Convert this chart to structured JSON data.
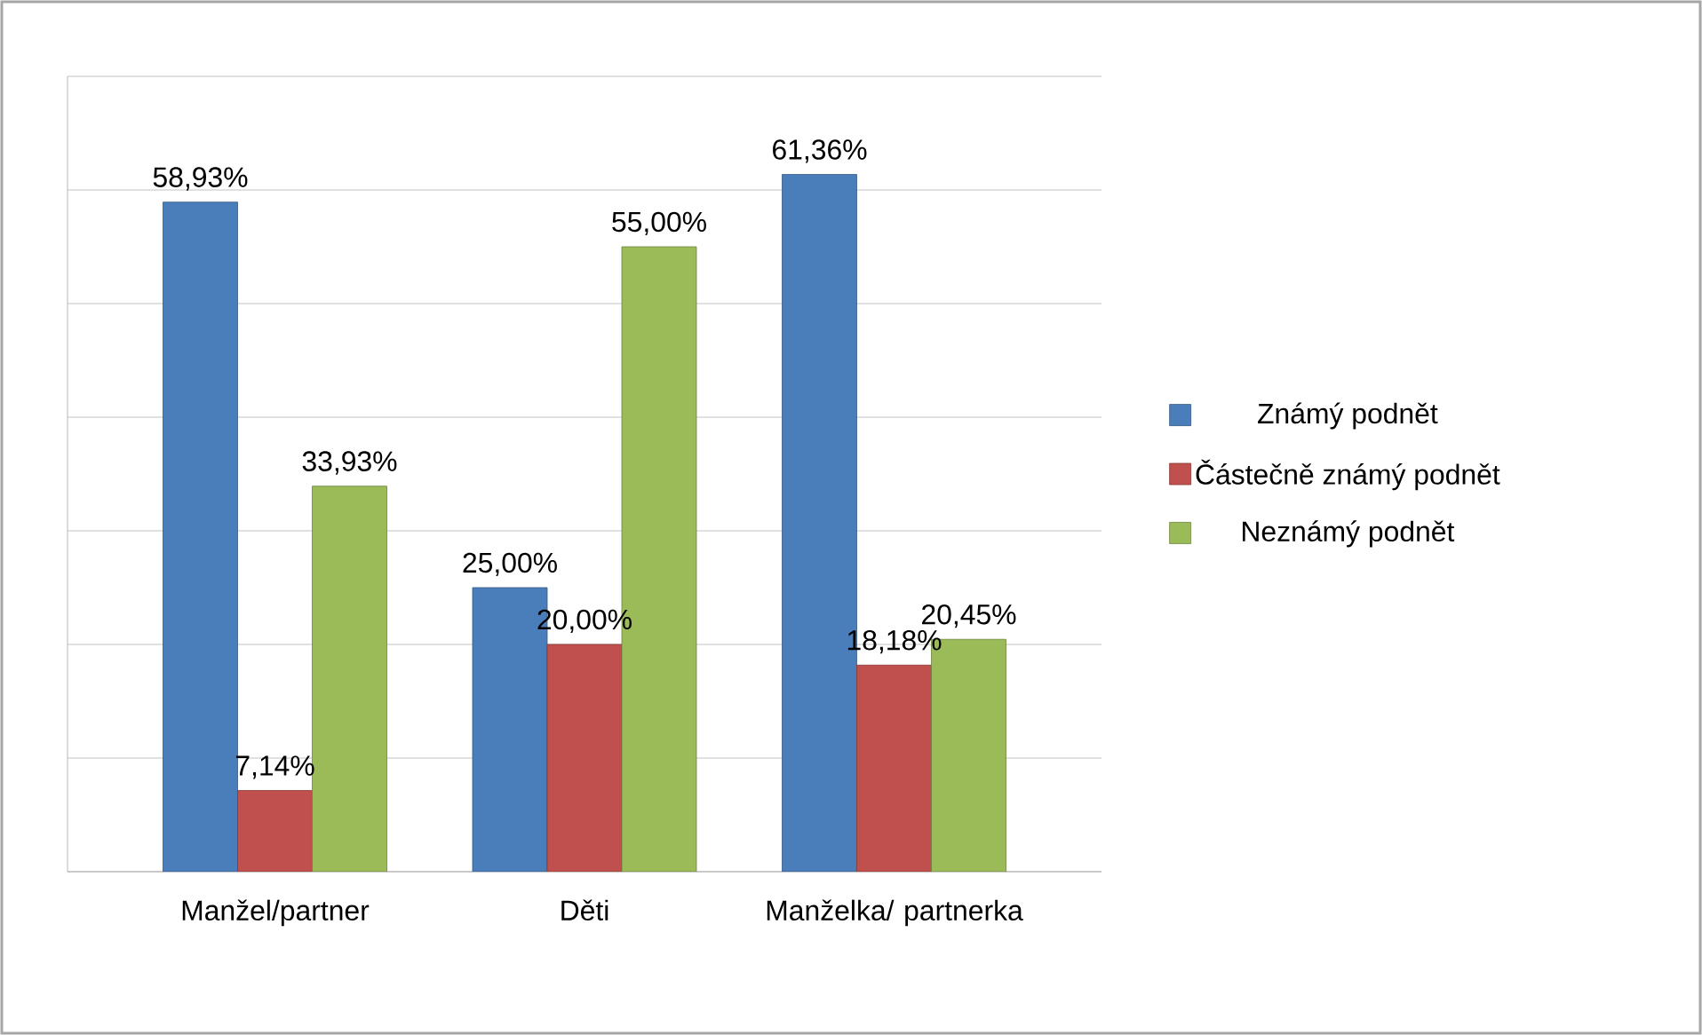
{
  "chart_data": {
    "type": "bar",
    "categories": [
      "Manžel/partner",
      "Děti",
      "Manželka/ partnerka"
    ],
    "series": [
      {
        "name": "Známý podnět",
        "color": "#4a7ebb",
        "values": [
          58.93,
          25.0,
          61.36
        ],
        "value_labels": [
          "58,93%",
          "25,00%",
          "61,36%"
        ]
      },
      {
        "name": "Částečně známý podnět",
        "color": "#c0504d",
        "values": [
          7.14,
          20.0,
          18.18
        ],
        "value_labels": [
          "7,14%",
          "20,00%",
          "18,18%"
        ]
      },
      {
        "name": "Neznámý podnět",
        "color": "#9bbb59",
        "values": [
          33.93,
          55.0,
          20.45
        ],
        "value_labels": [
          "33,93%",
          "55,00%",
          "20,45%"
        ]
      }
    ],
    "ylim": [
      0,
      70
    ],
    "yticks": [
      {
        "value": 0,
        "label": null
      },
      {
        "value": 10,
        "label": null
      },
      {
        "value": 20,
        "label": null
      },
      {
        "value": 30,
        "label": null
      },
      {
        "value": 40,
        "label": null
      },
      {
        "value": 50,
        "label": null
      },
      {
        "value": 60,
        "label": null
      },
      {
        "value": 70,
        "label": null
      }
    ],
    "grid": "y",
    "legend": "right",
    "tick_labels": "x"
  }
}
